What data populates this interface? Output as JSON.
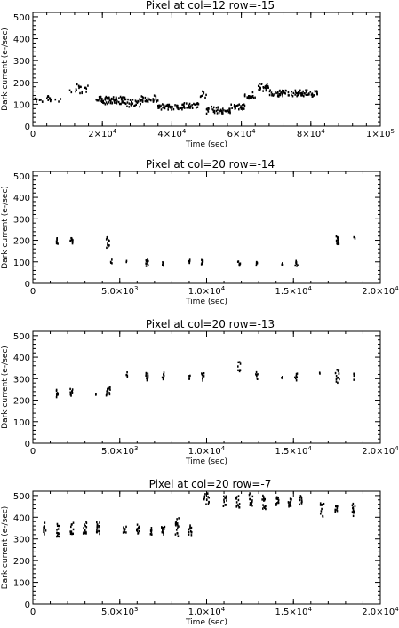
{
  "chart_data": [
    {
      "type": "scatter",
      "title": "Pixel at col=12 row=-15",
      "xlabel": "Time (sec)",
      "ylabel": "Dark current (e-/sec)",
      "xlim": [
        0,
        100000
      ],
      "ylim": [
        0,
        520
      ],
      "x_ticks": [
        {
          "v": 0,
          "t": "0"
        },
        {
          "v": 20000,
          "t": "2×10",
          "e": "4"
        },
        {
          "v": 40000,
          "t": "4×10",
          "e": "4"
        },
        {
          "v": 60000,
          "t": "6×10",
          "e": "4"
        },
        {
          "v": 80000,
          "t": "8×10",
          "e": "4"
        },
        {
          "v": 100000,
          "t": "1×10",
          "e": "5"
        }
      ],
      "y_ticks": [
        0,
        100,
        200,
        300,
        400,
        500
      ],
      "clusters": [
        {
          "x": [
            0,
            8000
          ],
          "y": [
            108,
            138
          ],
          "n": 22
        },
        {
          "x": [
            10000,
            16000
          ],
          "y": [
            150,
            195
          ],
          "n": 18
        },
        {
          "x": [
            18000,
            27000
          ],
          "y": [
            100,
            135
          ],
          "n": 70
        },
        {
          "x": [
            27000,
            31000
          ],
          "y": [
            88,
            125
          ],
          "n": 25
        },
        {
          "x": [
            31000,
            36000
          ],
          "y": [
            110,
            140
          ],
          "n": 30
        },
        {
          "x": [
            36000,
            43000
          ],
          "y": [
            75,
            100
          ],
          "n": 45
        },
        {
          "x": [
            43000,
            48000
          ],
          "y": [
            80,
            105
          ],
          "n": 30
        },
        {
          "x": [
            48000,
            50000
          ],
          "y": [
            130,
            160
          ],
          "n": 8
        },
        {
          "x": [
            50000,
            57000
          ],
          "y": [
            55,
            90
          ],
          "n": 45
        },
        {
          "x": [
            57000,
            61000
          ],
          "y": [
            75,
            100
          ],
          "n": 25
        },
        {
          "x": [
            61000,
            64000
          ],
          "y": [
            125,
            155
          ],
          "n": 20
        },
        {
          "x": [
            64000,
            68000
          ],
          "y": [
            160,
            195
          ],
          "n": 25
        },
        {
          "x": [
            68000,
            82000
          ],
          "y": [
            135,
            165
          ],
          "n": 90
        }
      ]
    },
    {
      "type": "scatter",
      "title": "Pixel at col=20 row=-14",
      "xlabel": "Time (sec)",
      "ylabel": "Dark current (e-/sec)",
      "xlim": [
        0,
        20000
      ],
      "ylim": [
        0,
        520
      ],
      "x_ticks": [
        {
          "v": 0,
          "t": "0"
        },
        {
          "v": 5000,
          "t": "5.0×10",
          "e": "3"
        },
        {
          "v": 10000,
          "t": "1.0×10",
          "e": "4"
        },
        {
          "v": 15000,
          "t": "1.5×10",
          "e": "4"
        },
        {
          "v": 20000,
          "t": "2.0×10",
          "e": "4"
        }
      ],
      "y_ticks": [
        0,
        100,
        200,
        300,
        400,
        500
      ],
      "clusters": [
        {
          "x": [
            1350,
            1450
          ],
          "y": [
            180,
            210
          ],
          "n": 8
        },
        {
          "x": [
            2150,
            2300
          ],
          "y": [
            185,
            210
          ],
          "n": 10
        },
        {
          "x": [
            4200,
            4400
          ],
          "y": [
            165,
            215
          ],
          "n": 14
        },
        {
          "x": [
            4450,
            4550
          ],
          "y": [
            90,
            110
          ],
          "n": 4
        },
        {
          "x": [
            5350,
            5450
          ],
          "y": [
            92,
            105
          ],
          "n": 2
        },
        {
          "x": [
            6500,
            6650
          ],
          "y": [
            80,
            110
          ],
          "n": 9
        },
        {
          "x": [
            7450,
            7550
          ],
          "y": [
            80,
            100
          ],
          "n": 6
        },
        {
          "x": [
            8950,
            9050
          ],
          "y": [
            90,
            110
          ],
          "n": 5
        },
        {
          "x": [
            9700,
            9850
          ],
          "y": [
            80,
            110
          ],
          "n": 9
        },
        {
          "x": [
            11800,
            11950
          ],
          "y": [
            80,
            110
          ],
          "n": 8
        },
        {
          "x": [
            12850,
            12950
          ],
          "y": [
            80,
            105
          ],
          "n": 6
        },
        {
          "x": [
            14300,
            14400
          ],
          "y": [
            80,
            100
          ],
          "n": 4
        },
        {
          "x": [
            15050,
            15250
          ],
          "y": [
            80,
            105
          ],
          "n": 8
        },
        {
          "x": [
            17450,
            17650
          ],
          "y": [
            180,
            220
          ],
          "n": 14
        },
        {
          "x": [
            18450,
            18550
          ],
          "y": [
            195,
            215
          ],
          "n": 2
        }
      ]
    },
    {
      "type": "scatter",
      "title": "Pixel at col=20 row=-13",
      "xlabel": "Time (sec)",
      "ylabel": "Dark current (e-/sec)",
      "xlim": [
        0,
        20000
      ],
      "ylim": [
        0,
        520
      ],
      "x_ticks": [
        {
          "v": 0,
          "t": "0"
        },
        {
          "v": 5000,
          "t": "5.0×10",
          "e": "3"
        },
        {
          "v": 10000,
          "t": "1.0×10",
          "e": "4"
        },
        {
          "v": 15000,
          "t": "1.5×10",
          "e": "4"
        },
        {
          "v": 20000,
          "t": "2.0×10",
          "e": "4"
        }
      ],
      "y_ticks": [
        0,
        100,
        200,
        300,
        400,
        500
      ],
      "clusters": [
        {
          "x": [
            1350,
            1450
          ],
          "y": [
            210,
            250
          ],
          "n": 8
        },
        {
          "x": [
            2150,
            2300
          ],
          "y": [
            215,
            255
          ],
          "n": 10
        },
        {
          "x": [
            3600,
            3700
          ],
          "y": [
            220,
            240
          ],
          "n": 2
        },
        {
          "x": [
            4200,
            4450
          ],
          "y": [
            220,
            260
          ],
          "n": 14
        },
        {
          "x": [
            5350,
            5450
          ],
          "y": [
            300,
            330
          ],
          "n": 4
        },
        {
          "x": [
            6500,
            6650
          ],
          "y": [
            290,
            335
          ],
          "n": 10
        },
        {
          "x": [
            7450,
            7550
          ],
          "y": [
            290,
            330
          ],
          "n": 8
        },
        {
          "x": [
            8950,
            9050
          ],
          "y": [
            295,
            320
          ],
          "n": 5
        },
        {
          "x": [
            9700,
            9850
          ],
          "y": [
            290,
            330
          ],
          "n": 10
        },
        {
          "x": [
            11800,
            11950
          ],
          "y": [
            330,
            380
          ],
          "n": 9
        },
        {
          "x": [
            12800,
            12950
          ],
          "y": [
            290,
            330
          ],
          "n": 7
        },
        {
          "x": [
            14300,
            14400
          ],
          "y": [
            290,
            320
          ],
          "n": 4
        },
        {
          "x": [
            15050,
            15250
          ],
          "y": [
            290,
            330
          ],
          "n": 9
        },
        {
          "x": [
            16450,
            16550
          ],
          "y": [
            310,
            330
          ],
          "n": 2
        },
        {
          "x": [
            17400,
            17650
          ],
          "y": [
            280,
            345
          ],
          "n": 16
        },
        {
          "x": [
            18400,
            18500
          ],
          "y": [
            290,
            330
          ],
          "n": 4
        }
      ]
    },
    {
      "type": "scatter",
      "title": "Pixel at col=20 row=-7",
      "xlabel": "Time (sec)",
      "ylabel": "Dark current (e-/sec)",
      "xlim": [
        0,
        20000
      ],
      "ylim": [
        0,
        520
      ],
      "x_ticks": [
        {
          "v": 0,
          "t": "0"
        },
        {
          "v": 5000,
          "t": "5.0×10",
          "e": "3"
        },
        {
          "v": 10000,
          "t": "1.0×10",
          "e": "4"
        },
        {
          "v": 15000,
          "t": "1.5×10",
          "e": "4"
        },
        {
          "v": 20000,
          "t": "2.0×10",
          "e": "4"
        }
      ],
      "y_ticks": [
        0,
        100,
        200,
        300,
        400,
        500
      ],
      "clusters": [
        {
          "x": [
            600,
            750
          ],
          "y": [
            320,
            375
          ],
          "n": 12
        },
        {
          "x": [
            1350,
            1500
          ],
          "y": [
            310,
            375
          ],
          "n": 12
        },
        {
          "x": [
            2150,
            2350
          ],
          "y": [
            320,
            375
          ],
          "n": 14
        },
        {
          "x": [
            2900,
            3100
          ],
          "y": [
            320,
            380
          ],
          "n": 14
        },
        {
          "x": [
            3650,
            3850
          ],
          "y": [
            320,
            380
          ],
          "n": 14
        },
        {
          "x": [
            5200,
            5400
          ],
          "y": [
            325,
            370
          ],
          "n": 12
        },
        {
          "x": [
            5950,
            6150
          ],
          "y": [
            325,
            370
          ],
          "n": 12
        },
        {
          "x": [
            6700,
            6850
          ],
          "y": [
            320,
            360
          ],
          "n": 10
        },
        {
          "x": [
            7400,
            7600
          ],
          "y": [
            320,
            370
          ],
          "n": 12
        },
        {
          "x": [
            8200,
            8400
          ],
          "y": [
            310,
            400
          ],
          "n": 16
        },
        {
          "x": [
            8950,
            9150
          ],
          "y": [
            310,
            365
          ],
          "n": 12
        },
        {
          "x": [
            9850,
            10150
          ],
          "y": [
            450,
            510
          ],
          "n": 14
        },
        {
          "x": [
            10950,
            11150
          ],
          "y": [
            450,
            500
          ],
          "n": 12
        },
        {
          "x": [
            11700,
            11900
          ],
          "y": [
            440,
            500
          ],
          "n": 14
        },
        {
          "x": [
            12450,
            12650
          ],
          "y": [
            450,
            510
          ],
          "n": 12
        },
        {
          "x": [
            13200,
            13400
          ],
          "y": [
            430,
            500
          ],
          "n": 14
        },
        {
          "x": [
            14000,
            14150
          ],
          "y": [
            450,
            505
          ],
          "n": 12
        },
        {
          "x": [
            14700,
            14900
          ],
          "y": [
            440,
            500
          ],
          "n": 14
        },
        {
          "x": [
            15350,
            15500
          ],
          "y": [
            450,
            510
          ],
          "n": 10
        },
        {
          "x": [
            16550,
            16750
          ],
          "y": [
            400,
            470
          ],
          "n": 12
        },
        {
          "x": [
            17400,
            17550
          ],
          "y": [
            420,
            460
          ],
          "n": 8
        },
        {
          "x": [
            18350,
            18550
          ],
          "y": [
            400,
            470
          ],
          "n": 12
        }
      ]
    }
  ]
}
